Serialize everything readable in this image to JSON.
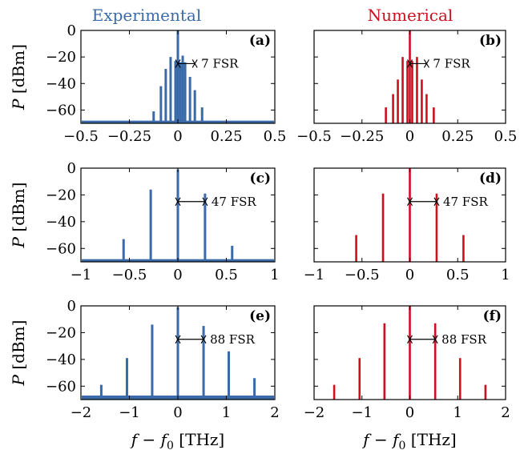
{
  "columns": [
    {
      "title": "Experimental",
      "color": "#3a6aa8"
    },
    {
      "title": "Numerical",
      "color": "#cc1020"
    }
  ],
  "axis_labels": {
    "y": {
      "sym": "P",
      "unit": " [dBm]"
    },
    "x": {
      "sym": "f − f",
      "sub": "0",
      "unit": " [THz]"
    }
  },
  "colors": {
    "experimental": "#3a6aa8",
    "numerical": "#cc1020"
  },
  "chart_data": [
    {
      "panel": "(a)",
      "type": "bar",
      "style": "experimental",
      "xlim": [
        -0.5,
        0.5
      ],
      "ylim": [
        -70,
        0
      ],
      "baseline": -70,
      "noise_floor": -68,
      "xticks": [
        -0.5,
        -0.25,
        0,
        0.25,
        0.5
      ],
      "xtick_labels": [
        "−0.5",
        "−0.25",
        "0",
        "0.25",
        "0.5"
      ],
      "yticks": [
        0,
        -20,
        -40,
        -60
      ],
      "ytick_labels": [
        "0",
        "−20",
        "−40",
        "−60"
      ],
      "x": [
        -0.125,
        -0.0875,
        -0.0625,
        -0.0375,
        -0.0125,
        0,
        0.0125,
        0.025,
        0.0375,
        0.0625,
        0.0875,
        0.125
      ],
      "values": [
        -61,
        -42,
        -29,
        -20,
        -23,
        0,
        -24,
        -19,
        -24,
        -35,
        -45,
        -58
      ],
      "annotation": {
        "text": "7 FSR",
        "x1": 0,
        "x2": 0.0875,
        "y": -25
      }
    },
    {
      "panel": "(b)",
      "type": "bar",
      "style": "numerical",
      "xlim": [
        -0.5,
        0.5
      ],
      "ylim": [
        -70,
        0
      ],
      "baseline": -70,
      "xticks": [
        -0.5,
        -0.25,
        0,
        0.25,
        0.5
      ],
      "xtick_labels": [
        "−0.5",
        "−0.25",
        "0",
        "0.25",
        "0.5"
      ],
      "yticks": [
        0,
        -20,
        -40,
        -60
      ],
      "ytick_labels": [
        "",
        "",
        "",
        ""
      ],
      "x": [
        -0.125,
        -0.0875,
        -0.0625,
        -0.0375,
        -0.0125,
        0,
        0.0125,
        0.0375,
        0.0625,
        0.0875,
        0.125
      ],
      "values": [
        -58,
        -48,
        -37,
        -20,
        -23,
        0,
        -23,
        -20,
        -37,
        -48,
        -58
      ],
      "annotation": {
        "text": "7 FSR",
        "x1": 0,
        "x2": 0.0875,
        "y": -25
      }
    },
    {
      "panel": "(c)",
      "type": "bar",
      "style": "experimental",
      "xlim": [
        -1,
        1
      ],
      "ylim": [
        -70,
        0
      ],
      "baseline": -70,
      "noise_floor": -68,
      "xticks": [
        -1,
        -0.5,
        0,
        0.5,
        1
      ],
      "xtick_labels": [
        "−1",
        "−0.5",
        "0",
        "0.5",
        "1"
      ],
      "yticks": [
        0,
        -20,
        -40,
        -60
      ],
      "ytick_labels": [
        "0",
        "−20",
        "−40",
        "−60"
      ],
      "x": [
        -0.56,
        -0.28,
        0,
        0.28,
        0.56
      ],
      "values": [
        -53,
        -16,
        -1,
        -19,
        -58
      ],
      "annotation": {
        "text": "47 FSR",
        "x1": 0,
        "x2": 0.28,
        "y": -25
      }
    },
    {
      "panel": "(d)",
      "type": "bar",
      "style": "numerical",
      "xlim": [
        -1,
        1
      ],
      "ylim": [
        -70,
        0
      ],
      "baseline": -70,
      "xticks": [
        -1,
        -0.5,
        0,
        0.5,
        1
      ],
      "xtick_labels": [
        "−1",
        "−0.5",
        "0",
        "0.5",
        "1"
      ],
      "yticks": [
        0,
        -20,
        -40,
        -60
      ],
      "ytick_labels": [
        "",
        "",
        "",
        ""
      ],
      "x": [
        -0.56,
        -0.28,
        0,
        0.28,
        0.56
      ],
      "values": [
        -50,
        -19,
        0,
        -19,
        -50
      ],
      "annotation": {
        "text": "47 FSR",
        "x1": 0,
        "x2": 0.28,
        "y": -25
      }
    },
    {
      "panel": "(e)",
      "type": "bar",
      "style": "experimental",
      "xlim": [
        -2,
        2
      ],
      "ylim": [
        -70,
        0
      ],
      "baseline": -70,
      "noise_floor": -67,
      "xticks": [
        -2,
        -1,
        0,
        1,
        2
      ],
      "xtick_labels": [
        "−2",
        "−1",
        "0",
        "1",
        "2"
      ],
      "yticks": [
        0,
        -20,
        -40,
        -60
      ],
      "ytick_labels": [
        "0",
        "−20",
        "−40",
        "−60"
      ],
      "x": [
        -1.58,
        -1.05,
        -0.53,
        0,
        0.53,
        1.05,
        1.58
      ],
      "values": [
        -59,
        -39,
        -14,
        -1,
        -15,
        -34,
        -54
      ],
      "annotation": {
        "text": "88 FSR",
        "x1": 0,
        "x2": 0.53,
        "y": -25
      }
    },
    {
      "panel": "(f)",
      "type": "bar",
      "style": "numerical",
      "xlim": [
        -2,
        2
      ],
      "ylim": [
        -70,
        0
      ],
      "baseline": -70,
      "xticks": [
        -2,
        -1,
        0,
        1,
        2
      ],
      "xtick_labels": [
        "−2",
        "−1",
        "0",
        "1",
        "2"
      ],
      "yticks": [
        0,
        -20,
        -40,
        -60
      ],
      "ytick_labels": [
        "",
        "",
        "",
        ""
      ],
      "x": [
        -1.58,
        -1.05,
        -0.53,
        0,
        0.53,
        1.05,
        1.58
      ],
      "values": [
        -59,
        -39,
        -13,
        0,
        -13,
        -39,
        -59
      ],
      "annotation": {
        "text": "88 FSR",
        "x1": 0,
        "x2": 0.53,
        "y": -25
      }
    }
  ]
}
